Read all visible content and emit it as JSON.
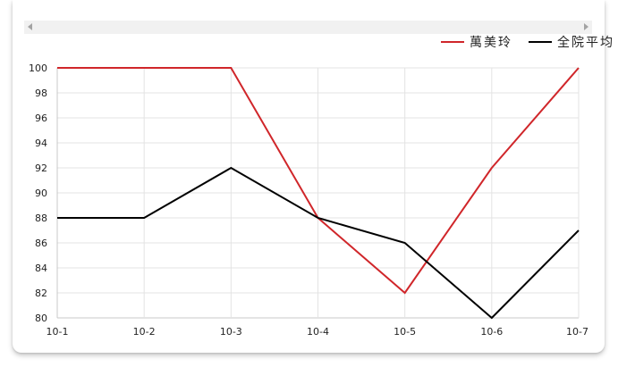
{
  "chart_data": {
    "type": "line",
    "title": "",
    "xlabel": "",
    "ylabel": "",
    "categories": [
      "10-1",
      "10-2",
      "10-3",
      "10-4",
      "10-5",
      "10-6",
      "10-7"
    ],
    "ylim": [
      80,
      100
    ],
    "yticks": [
      80,
      82,
      84,
      86,
      88,
      90,
      92,
      94,
      96,
      98,
      100
    ],
    "grid": true,
    "legend_position": "top-right",
    "series": [
      {
        "name": "萬美玲",
        "color": "#d0262a",
        "values": [
          100,
          100,
          100,
          88,
          82,
          92,
          100
        ]
      },
      {
        "name": "全院平均",
        "color": "#000000",
        "values": [
          88,
          88,
          92,
          88,
          86,
          80,
          87
        ]
      }
    ]
  }
}
